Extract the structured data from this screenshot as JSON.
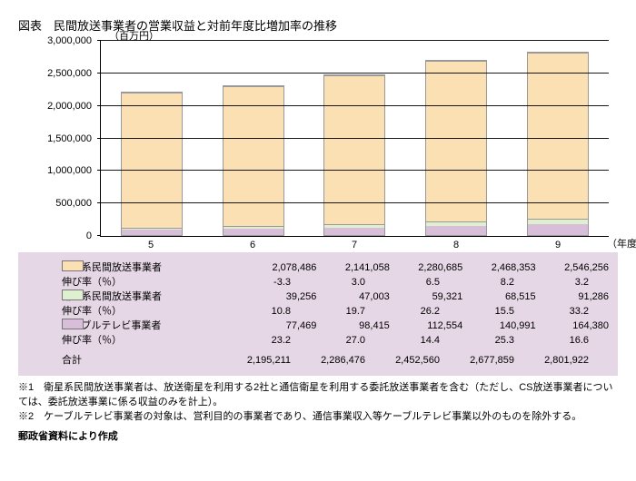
{
  "title": "図表　民間放送事業者の営業収益と対前年度比増加率の推移",
  "unit_label": "（百万円）",
  "x_end_label": "（年度）",
  "ymax": 3000000,
  "ytick_step": 500000,
  "yticks": [
    "0",
    "500,000",
    "1,000,000",
    "1,500,000",
    "2,000,000",
    "2,500,000",
    "3,000,000"
  ],
  "categories": [
    "5",
    "6",
    "7",
    "8",
    "9"
  ],
  "colors": {
    "terrestrial": "#fbe0b3",
    "satellite": "#dff0d0",
    "cable": "#d9bed9",
    "table_bg": "#e6d7e6",
    "border": "#999999"
  },
  "series": {
    "terrestrial": {
      "label": "地上系民間放送事業者",
      "rate_label": "伸び率（％）",
      "values": [
        2078486,
        2141058,
        2280685,
        2468353,
        2546256
      ],
      "values_fmt": [
        "2,078,486",
        "2,141,058",
        "2,280,685",
        "2,468,353",
        "2,546,256"
      ],
      "rates": [
        "-3.3",
        "3.0",
        "6.5",
        "8.2",
        "3.2"
      ]
    },
    "satellite": {
      "label": "衛星系民間放送事業者",
      "rate_label": "伸び率（％）",
      "values": [
        39256,
        47003,
        59321,
        68515,
        91286
      ],
      "values_fmt": [
        "39,256",
        "47,003",
        "59,321",
        "68,515",
        "91,286"
      ],
      "rates": [
        "10.8",
        "19.7",
        "26.2",
        "15.5",
        "33.2"
      ]
    },
    "cable": {
      "label": "ケーブルテレビ事業者",
      "rate_label": "伸び率（％）",
      "values": [
        77469,
        98415,
        112554,
        140991,
        164380
      ],
      "values_fmt": [
        "77,469",
        "98,415",
        "112,554",
        "140,991",
        "164,380"
      ],
      "rates": [
        "23.2",
        "27.0",
        "14.4",
        "25.3",
        "16.6"
      ]
    }
  },
  "total": {
    "label": "合計",
    "values_fmt": [
      "2,195,211",
      "2,286,476",
      "2,452,560",
      "2,677,859",
      "2,801,922"
    ]
  },
  "notes": [
    "※1　衛星系民間放送事業者は、放送衛星を利用する2社と通信衛星を利用する委託放送事業者を含む（ただし、CS放送事業者については、委託放送事業に係る収益のみを計上）。",
    "※2　ケーブルテレビ事業者の対象は、営利目的の事業者であり、通信事業収入等ケーブルテレビ事業以外のものを除外する。"
  ],
  "source": "郵政省資料により作成"
}
